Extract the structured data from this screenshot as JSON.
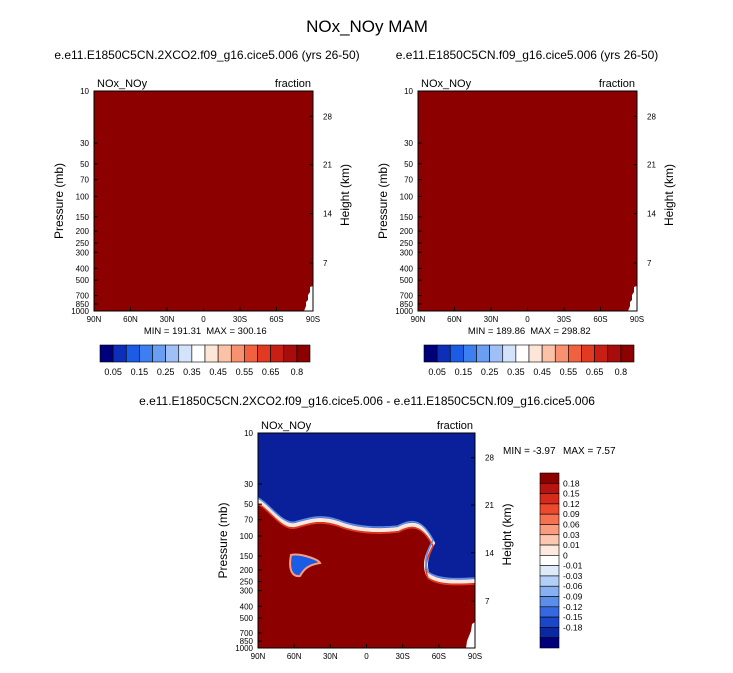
{
  "figure": {
    "title": "NOx_NOy MAM"
  },
  "chart_data": [
    {
      "type": "heatmap",
      "title": "e.e11.E1850C5CN.2XCO2.f09_g16.cice5.006 (yrs 26-50)",
      "left_label": "NOx_NOy",
      "right_label": "fraction",
      "xlabel": "",
      "ylabel": "Pressure (mb)",
      "ylabel_right": "Height (km)",
      "x_ticks": [
        "90N",
        "60N",
        "30N",
        "0",
        "30S",
        "60S",
        "90S"
      ],
      "y_ticks": [
        "10",
        "30",
        "50",
        "70",
        "100",
        "150",
        "200",
        "250",
        "300",
        "400",
        "500",
        "700",
        "850",
        "1000"
      ],
      "y2_ticks": [
        "28",
        "21",
        "14",
        "7"
      ],
      "min_text": "MIN = 191.31",
      "max_text": "MAX = 300.16",
      "field_color": "#8c0000",
      "colorbar": {
        "colors": [
          "#00007a",
          "#0d2eb8",
          "#1a5ce6",
          "#3d7ef0",
          "#6a9ef2",
          "#9fbff5",
          "#d3e4fa",
          "#ffffff",
          "#fde6d8",
          "#fbc2a8",
          "#f7916f",
          "#f2613f",
          "#e23a20",
          "#c81e13",
          "#a80d0b",
          "#8c0000"
        ],
        "labels": [
          "0.05",
          "0.15",
          "0.25",
          "0.35",
          "0.45",
          "0.55",
          "0.65",
          "0.8"
        ]
      }
    },
    {
      "type": "heatmap",
      "title": "e.e11.E1850C5CN.f09_g16.cice5.006 (yrs 26-50)",
      "left_label": "NOx_NOy",
      "right_label": "fraction",
      "xlabel": "",
      "ylabel": "Pressure (mb)",
      "ylabel_right": "Height (km)",
      "x_ticks": [
        "90N",
        "60N",
        "30N",
        "0",
        "30S",
        "60S",
        "90S"
      ],
      "y_ticks": [
        "10",
        "30",
        "50",
        "70",
        "100",
        "150",
        "200",
        "250",
        "300",
        "400",
        "500",
        "700",
        "850",
        "1000"
      ],
      "y2_ticks": [
        "28",
        "21",
        "14",
        "7"
      ],
      "min_text": "MIN = 189.86",
      "max_text": "MAX = 298.82",
      "field_color": "#8c0000",
      "colorbar": {
        "colors": [
          "#00007a",
          "#0d2eb8",
          "#1a5ce6",
          "#3d7ef0",
          "#6a9ef2",
          "#9fbff5",
          "#d3e4fa",
          "#ffffff",
          "#fde6d8",
          "#fbc2a8",
          "#f7916f",
          "#f2613f",
          "#e23a20",
          "#c81e13",
          "#a80d0b",
          "#8c0000"
        ],
        "labels": [
          "0.05",
          "0.15",
          "0.25",
          "0.35",
          "0.45",
          "0.55",
          "0.65",
          "0.8"
        ]
      }
    },
    {
      "type": "heatmap",
      "title": "e.e11.E1850C5CN.2XCO2.f09_g16.cice5.006 - e.e11.E1850C5CN.f09_g16.cice5.006",
      "left_label": "NOx_NOy",
      "right_label": "fraction",
      "xlabel": "",
      "ylabel": "Pressure (mb)",
      "ylabel_right": "Height (km)",
      "x_ticks": [
        "90N",
        "60N",
        "30N",
        "0",
        "30S",
        "60S",
        "90S"
      ],
      "y_ticks": [
        "10",
        "30",
        "50",
        "70",
        "100",
        "150",
        "200",
        "250",
        "300",
        "400",
        "500",
        "700",
        "850",
        "1000"
      ],
      "y2_ticks": [
        "28",
        "21",
        "14",
        "7"
      ],
      "min_text": "MIN =  -3.97",
      "max_text": "MAX =   7.57",
      "upper_color": "#0a1f9a",
      "lower_color": "#8c0000",
      "colorbar": {
        "colors": [
          "#8c0000",
          "#b8140f",
          "#d62a1a",
          "#ec4a2c",
          "#f5714f",
          "#f99c7f",
          "#fcc8b0",
          "#fde9dd",
          "#ffffff",
          "#dceafa",
          "#b3cff5",
          "#86b0f0",
          "#5a8ee8",
          "#3668e0",
          "#1a46c8",
          "#0b28a3",
          "#00007a"
        ],
        "labels": [
          "0.18",
          "0.15",
          "0.12",
          "0.09",
          "0.06",
          "0.03",
          "0.01",
          "0",
          "-0.01",
          "-0.03",
          "-0.06",
          "-0.09",
          "-0.12",
          "-0.15",
          "-0.18"
        ]
      }
    }
  ]
}
